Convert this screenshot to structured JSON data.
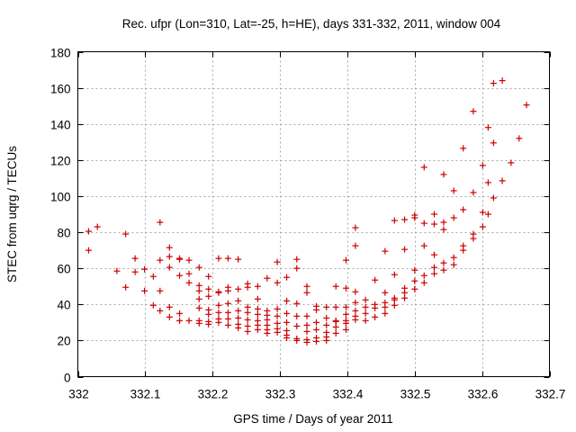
{
  "chart_data": {
    "type": "scatter",
    "title": "Rec. ufpr (Lon=310, Lat=-25, h=HE), days 331-332, 2011, window 004",
    "xlabel": "GPS time / Days of year 2011",
    "ylabel": "STEC from uqrg / TECUs",
    "xlim": [
      332,
      332.7
    ],
    "ylim": [
      0,
      180
    ],
    "x_ticks": [
      332,
      332.1,
      332.2,
      332.3,
      332.4,
      332.5,
      332.6,
      332.7
    ],
    "x_tick_labels": [
      "332",
      "332.1",
      "332.2",
      "332.3",
      "332.4",
      "332.5",
      "332.6",
      "332.7"
    ],
    "y_ticks": [
      0,
      20,
      40,
      60,
      80,
      100,
      120,
      140,
      160,
      180
    ],
    "y_tick_labels": [
      "0",
      "20",
      "40",
      "60",
      "80",
      "100",
      "120",
      "140",
      "160",
      "180"
    ],
    "grid": true,
    "marker": "plus",
    "color": "#cc0000",
    "series": [
      {
        "name": "",
        "points": [
          [
            332.016,
            80.5
          ],
          [
            332.016,
            70.0
          ],
          [
            332.029,
            83.0
          ],
          [
            332.058,
            58.5
          ],
          [
            332.071,
            79.0
          ],
          [
            332.071,
            49.5
          ],
          [
            332.085,
            65.5
          ],
          [
            332.085,
            58.0
          ],
          [
            332.099,
            59.5
          ],
          [
            332.099,
            47.5
          ],
          [
            332.112,
            55.5
          ],
          [
            332.112,
            39.5
          ],
          [
            332.122,
            85.5
          ],
          [
            332.122,
            64.5
          ],
          [
            332.122,
            47.5
          ],
          [
            332.122,
            36.5
          ],
          [
            332.136,
            71.5
          ],
          [
            332.136,
            66.5
          ],
          [
            332.136,
            60.5
          ],
          [
            332.136,
            38.5
          ],
          [
            332.136,
            33.0
          ],
          [
            332.151,
            65.5
          ],
          [
            332.151,
            65.0
          ],
          [
            332.151,
            56.0
          ],
          [
            332.151,
            35.0
          ],
          [
            332.151,
            31.0
          ],
          [
            332.165,
            64.5
          ],
          [
            332.165,
            57.0
          ],
          [
            332.165,
            52.0
          ],
          [
            332.165,
            31.0
          ],
          [
            332.18,
            60.5
          ],
          [
            332.18,
            50.5
          ],
          [
            332.18,
            47.5
          ],
          [
            332.18,
            43.0
          ],
          [
            332.18,
            38.0
          ],
          [
            332.18,
            31.0
          ],
          [
            332.18,
            29.5
          ],
          [
            332.194,
            55.5
          ],
          [
            332.194,
            48.5
          ],
          [
            332.194,
            44.5
          ],
          [
            332.194,
            37.0
          ],
          [
            332.194,
            34.5
          ],
          [
            332.194,
            30.5
          ],
          [
            332.194,
            29.0
          ],
          [
            332.209,
            65.5
          ],
          [
            332.209,
            47.0
          ],
          [
            332.209,
            46.5
          ],
          [
            332.209,
            39.5
          ],
          [
            332.209,
            35.5
          ],
          [
            332.209,
            32.0
          ],
          [
            332.209,
            30.0
          ],
          [
            332.223,
            65.5
          ],
          [
            332.223,
            49.5
          ],
          [
            332.223,
            47.5
          ],
          [
            332.223,
            40.5
          ],
          [
            332.223,
            35.5
          ],
          [
            332.223,
            32.0
          ],
          [
            332.223,
            28.5
          ],
          [
            332.238,
            65.0
          ],
          [
            332.238,
            48.5
          ],
          [
            332.238,
            42.0
          ],
          [
            332.238,
            36.5
          ],
          [
            332.238,
            32.5
          ],
          [
            332.238,
            29.0
          ],
          [
            332.238,
            27.0
          ],
          [
            332.252,
            51.5
          ],
          [
            332.252,
            49.5
          ],
          [
            332.252,
            38.5
          ],
          [
            332.252,
            35.5
          ],
          [
            332.252,
            31.5
          ],
          [
            332.252,
            28.0
          ],
          [
            332.252,
            25.0
          ],
          [
            332.267,
            50.0
          ],
          [
            332.267,
            43.0
          ],
          [
            332.267,
            37.5
          ],
          [
            332.267,
            34.5
          ],
          [
            332.267,
            31.0
          ],
          [
            332.267,
            28.5
          ],
          [
            332.267,
            26.0
          ],
          [
            332.281,
            54.5
          ],
          [
            332.281,
            36.5
          ],
          [
            332.281,
            34.0
          ],
          [
            332.281,
            31.5
          ],
          [
            332.281,
            28.5
          ],
          [
            332.281,
            26.0
          ],
          [
            332.281,
            24.0
          ],
          [
            332.296,
            63.5
          ],
          [
            332.296,
            52.0
          ],
          [
            332.296,
            37.5
          ],
          [
            332.296,
            33.5
          ],
          [
            332.296,
            29.5
          ],
          [
            332.296,
            26.5
          ],
          [
            332.296,
            24.5
          ],
          [
            332.31,
            55.0
          ],
          [
            332.31,
            42.0
          ],
          [
            332.31,
            35.0
          ],
          [
            332.31,
            30.0
          ],
          [
            332.31,
            25.5
          ],
          [
            332.31,
            23.0
          ],
          [
            332.31,
            21.5
          ],
          [
            332.325,
            65.0
          ],
          [
            332.325,
            60.0
          ],
          [
            332.325,
            40.5
          ],
          [
            332.325,
            33.5
          ],
          [
            332.325,
            28.0
          ],
          [
            332.325,
            21.0
          ],
          [
            332.325,
            20.0
          ],
          [
            332.34,
            50.0
          ],
          [
            332.34,
            46.5
          ],
          [
            332.34,
            33.5
          ],
          [
            332.34,
            28.5
          ],
          [
            332.34,
            25.0
          ],
          [
            332.34,
            20.5
          ],
          [
            332.34,
            19.0
          ],
          [
            332.354,
            39.0
          ],
          [
            332.354,
            37.0
          ],
          [
            332.354,
            30.0
          ],
          [
            332.354,
            26.0
          ],
          [
            332.354,
            21.5
          ],
          [
            332.354,
            19.5
          ],
          [
            332.369,
            38.5
          ],
          [
            332.369,
            32.5
          ],
          [
            332.369,
            28.5
          ],
          [
            332.369,
            24.5
          ],
          [
            332.369,
            22.0
          ],
          [
            332.369,
            20.0
          ],
          [
            332.383,
            50.0
          ],
          [
            332.383,
            38.5
          ],
          [
            332.383,
            31.0
          ],
          [
            332.383,
            30.5
          ],
          [
            332.383,
            27.5
          ],
          [
            332.383,
            24.0
          ],
          [
            332.398,
            64.5
          ],
          [
            332.398,
            49.0
          ],
          [
            332.398,
            38.5
          ],
          [
            332.398,
            34.5
          ],
          [
            332.398,
            31.0
          ],
          [
            332.398,
            29.5
          ],
          [
            332.398,
            26.0
          ],
          [
            332.412,
            82.5
          ],
          [
            332.412,
            72.5
          ],
          [
            332.412,
            47.0
          ],
          [
            332.412,
            41.0
          ],
          [
            332.412,
            36.5
          ],
          [
            332.412,
            33.5
          ],
          [
            332.412,
            31.5
          ],
          [
            332.427,
            42.5
          ],
          [
            332.427,
            38.5
          ],
          [
            332.427,
            35.0
          ],
          [
            332.427,
            31.0
          ],
          [
            332.441,
            53.5
          ],
          [
            332.441,
            40.0
          ],
          [
            332.441,
            38.0
          ],
          [
            332.441,
            33.0
          ],
          [
            332.456,
            69.5
          ],
          [
            332.456,
            46.5
          ],
          [
            332.456,
            41.0
          ],
          [
            332.456,
            38.5
          ],
          [
            332.456,
            35.0
          ],
          [
            332.47,
            86.5
          ],
          [
            332.47,
            56.5
          ],
          [
            332.47,
            43.5
          ],
          [
            332.47,
            42.5
          ],
          [
            332.47,
            39.5
          ],
          [
            332.485,
            87.0
          ],
          [
            332.485,
            70.5
          ],
          [
            332.485,
            49.0
          ],
          [
            332.485,
            46.5
          ],
          [
            332.485,
            43.5
          ],
          [
            332.5,
            89.5
          ],
          [
            332.5,
            88.0
          ],
          [
            332.5,
            59.0
          ],
          [
            332.5,
            53.0
          ],
          [
            332.5,
            48.5
          ],
          [
            332.514,
            116.0
          ],
          [
            332.514,
            85.0
          ],
          [
            332.514,
            72.5
          ],
          [
            332.514,
            56.0
          ],
          [
            332.514,
            52.0
          ],
          [
            332.529,
            90.0
          ],
          [
            332.529,
            84.5
          ],
          [
            332.529,
            67.5
          ],
          [
            332.529,
            60.5
          ],
          [
            332.529,
            57.0
          ],
          [
            332.543,
            112.0
          ],
          [
            332.543,
            85.5
          ],
          [
            332.543,
            81.5
          ],
          [
            332.543,
            63.0
          ],
          [
            332.543,
            59.0
          ],
          [
            332.558,
            103.0
          ],
          [
            332.558,
            88.0
          ],
          [
            332.558,
            66.0
          ],
          [
            332.558,
            62.0
          ],
          [
            332.572,
            126.5
          ],
          [
            332.572,
            92.5
          ],
          [
            332.572,
            72.5
          ],
          [
            332.572,
            70.0
          ],
          [
            332.587,
            147.0
          ],
          [
            332.587,
            102.0
          ],
          [
            332.587,
            79.0
          ],
          [
            332.587,
            76.5
          ],
          [
            332.601,
            117.0
          ],
          [
            332.601,
            91.0
          ],
          [
            332.601,
            83.0
          ],
          [
            332.609,
            138.0
          ],
          [
            332.609,
            107.5
          ],
          [
            332.609,
            90.0
          ],
          [
            332.617,
            162.5
          ],
          [
            332.617,
            129.5
          ],
          [
            332.617,
            99.0
          ],
          [
            332.63,
            164.0
          ],
          [
            332.63,
            108.5
          ],
          [
            332.643,
            118.5
          ],
          [
            332.655,
            132.0
          ],
          [
            332.666,
            150.5
          ]
        ]
      }
    ]
  }
}
